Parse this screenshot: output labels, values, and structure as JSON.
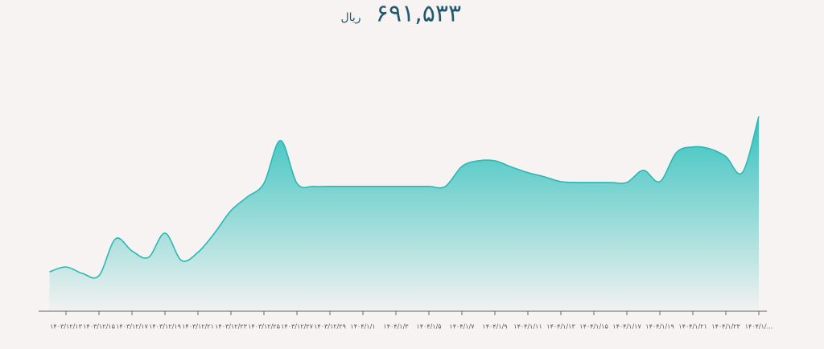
{
  "chart_data": {
    "type": "area",
    "price": "۶۹۱,۵۳۳",
    "currency": "ریال",
    "color": "#2bb8b5",
    "categories": [
      null,
      "۱۴۰۳/۱۲/۱۳",
      null,
      "۱۴۰۳/۱۲/۱۵",
      null,
      "۱۴۰۳/۱۲/۱۷",
      null,
      "۱۴۰۳/۱۲/۱۹",
      null,
      "۱۴۰۳/۱۲/۲۱",
      null,
      "۱۴۰۳/۱۲/۲۳",
      null,
      "۱۴۰۳/۱۲/۲۵",
      null,
      "۱۴۰۳/۱۲/۲۷",
      null,
      "۱۴۰۳/۱۲/۲۹",
      null,
      "۱۴۰۴/۱/۱",
      null,
      "۱۴۰۴/۱/۳",
      null,
      "۱۴۰۴/۱/۵",
      null,
      "۱۴۰۴/۱/۷",
      null,
      "۱۴۰۴/۱/۹",
      null,
      "۱۴۰۴/۱/۱۱",
      null,
      "۱۴۰۴/۱/۱۳",
      null,
      "۱۴۰۴/۱/۱۵",
      null,
      "۱۴۰۴/۱/۱۷",
      null,
      "۱۴۰۴/۱/۱۹",
      null,
      "۱۴۰۴/۱/۲۱",
      null,
      "۱۴۰۴/۱/۲۳",
      null,
      "۱۴۰۴/۱/..."
    ],
    "values": [
      140000,
      157000,
      134000,
      126000,
      257000,
      214000,
      191000,
      277000,
      180000,
      209000,
      277000,
      357000,
      406000,
      454000,
      606000,
      454000,
      443000,
      443000,
      443000,
      443000,
      443000,
      443000,
      443000,
      443000,
      443000,
      514000,
      534000,
      534000,
      512000,
      492000,
      477000,
      460000,
      457000,
      457000,
      457000,
      457000,
      500000,
      460000,
      563000,
      583000,
      577000,
      549000,
      492000,
      691533
    ],
    "ylim": [
      0,
      845000
    ]
  }
}
